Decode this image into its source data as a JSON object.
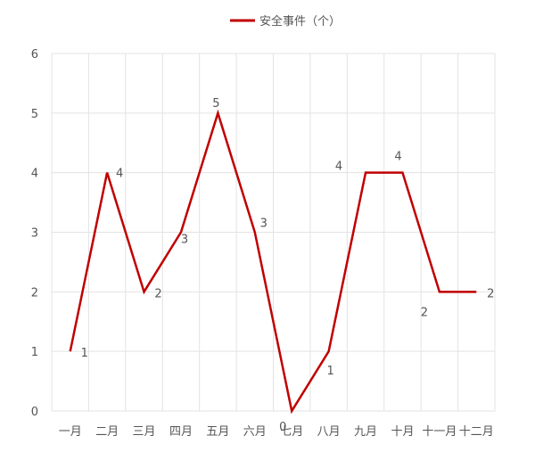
{
  "chart_data": {
    "type": "line",
    "categories": [
      "一月",
      "二月",
      "三月",
      "四月",
      "五月",
      "六月",
      "七月",
      "八月",
      "九月",
      "十月",
      "十一月",
      "十二月"
    ],
    "series": [
      {
        "name": "安全事件（个）",
        "values": [
          1,
          4,
          2,
          3,
          5,
          3,
          0,
          1,
          4,
          4,
          2,
          2
        ],
        "color": "#c00000"
      }
    ],
    "ylim": [
      0,
      6
    ],
    "yticks": [
      0,
      1,
      2,
      3,
      4,
      5,
      6
    ],
    "grid": true,
    "legend": "top-center",
    "data_labels": true
  }
}
